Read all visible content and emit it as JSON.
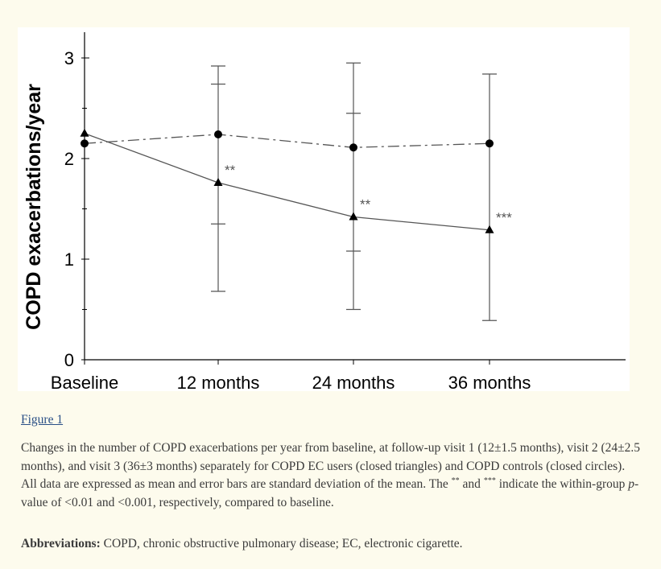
{
  "chart_data": {
    "type": "line",
    "title": "",
    "xlabel": "",
    "ylabel": "COPD exacerbations/year",
    "categories": [
      "Baseline",
      "12 months",
      "24 months",
      "36 months"
    ],
    "ylim": [
      0,
      3
    ],
    "yticks": [
      "0",
      "1",
      "2",
      "3"
    ],
    "grid": false,
    "series": [
      {
        "marker": "triangle",
        "line_style": "solid",
        "values": [
          2.25,
          1.76,
          1.42,
          1.29
        ],
        "error_low": [
          null,
          0.68,
          0.5,
          0.39
        ],
        "error_high": [
          null,
          2.92,
          2.95,
          2.84
        ],
        "inner_ticks": [
          null,
          [
            1.35,
            2.74
          ],
          [
            1.08,
            2.45
          ],
          null
        ],
        "significance": [
          "",
          "**",
          "**",
          "***"
        ]
      },
      {
        "marker": "circle",
        "line_style": "dashdot",
        "values": [
          2.15,
          2.24,
          2.11,
          2.15
        ],
        "error_low": [
          null,
          null,
          null,
          null
        ],
        "error_high": [
          null,
          null,
          null,
          null
        ]
      }
    ],
    "colors": {
      "line": "#555555",
      "axis": "#000000"
    }
  },
  "figure_link": "Figure 1",
  "caption": {
    "text1": "Changes in the number of COPD exacerbations per year from baseline, at follow-up visit 1 (12±1.5 months), visit 2 (24±2.5 months), and visit 3 (36±3 months) separately for COPD EC users (closed triangles) and COPD controls (closed circles). All data are expressed as mean and error bars are standard deviation of the mean. The ",
    "sup1": "**",
    "text2": " and ",
    "sup2": "***",
    "text3": " indicate the within-group ",
    "p_italic": "p",
    "text4": "-value of <0.01 and <0.001, respectively, compared to baseline."
  },
  "abbreviations": {
    "label": "Abbreviations:",
    "text": " COPD, chronic obstructive pulmonary disease; EC, electronic cigarette."
  }
}
